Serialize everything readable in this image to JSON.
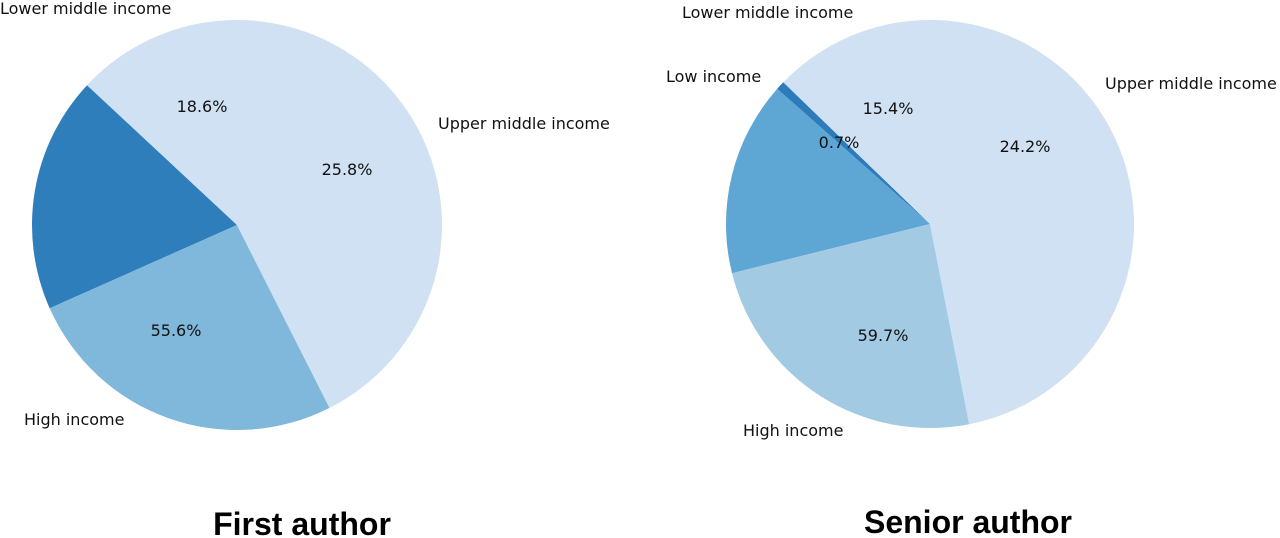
{
  "chart_data": [
    {
      "type": "pie",
      "title": "First author",
      "colors": {
        "Low income": "#2d7bbb",
        "Lower middle income": "#2f7ebc",
        "Upper middle income": "#7fb8da",
        "High income": "#cfe1f2"
      },
      "slices": [
        {
          "label": "Lower middle income",
          "value": 18.6,
          "pct_text": "18.6%"
        },
        {
          "label": "Upper middle income",
          "value": 25.8,
          "pct_text": "25.8%"
        },
        {
          "label": "High income",
          "value": 55.6,
          "pct_text": "55.6%"
        }
      ]
    },
    {
      "type": "pie",
      "title": "Senior author",
      "colors": {
        "Low income": "#2d7bbb",
        "Lower middle income": "#5ea6d3",
        "Upper middle income": "#a2cbe3",
        "High income": "#cfe1f2"
      },
      "slices": [
        {
          "label": "Low income",
          "value": 0.7,
          "pct_text": "0.7%"
        },
        {
          "label": "Lower middle income",
          "value": 15.4,
          "pct_text": "15.4%"
        },
        {
          "label": "Upper middle income",
          "value": 24.2,
          "pct_text": "24.2%"
        },
        {
          "label": "High income",
          "value": 59.7,
          "pct_text": "59.7%"
        }
      ]
    }
  ]
}
